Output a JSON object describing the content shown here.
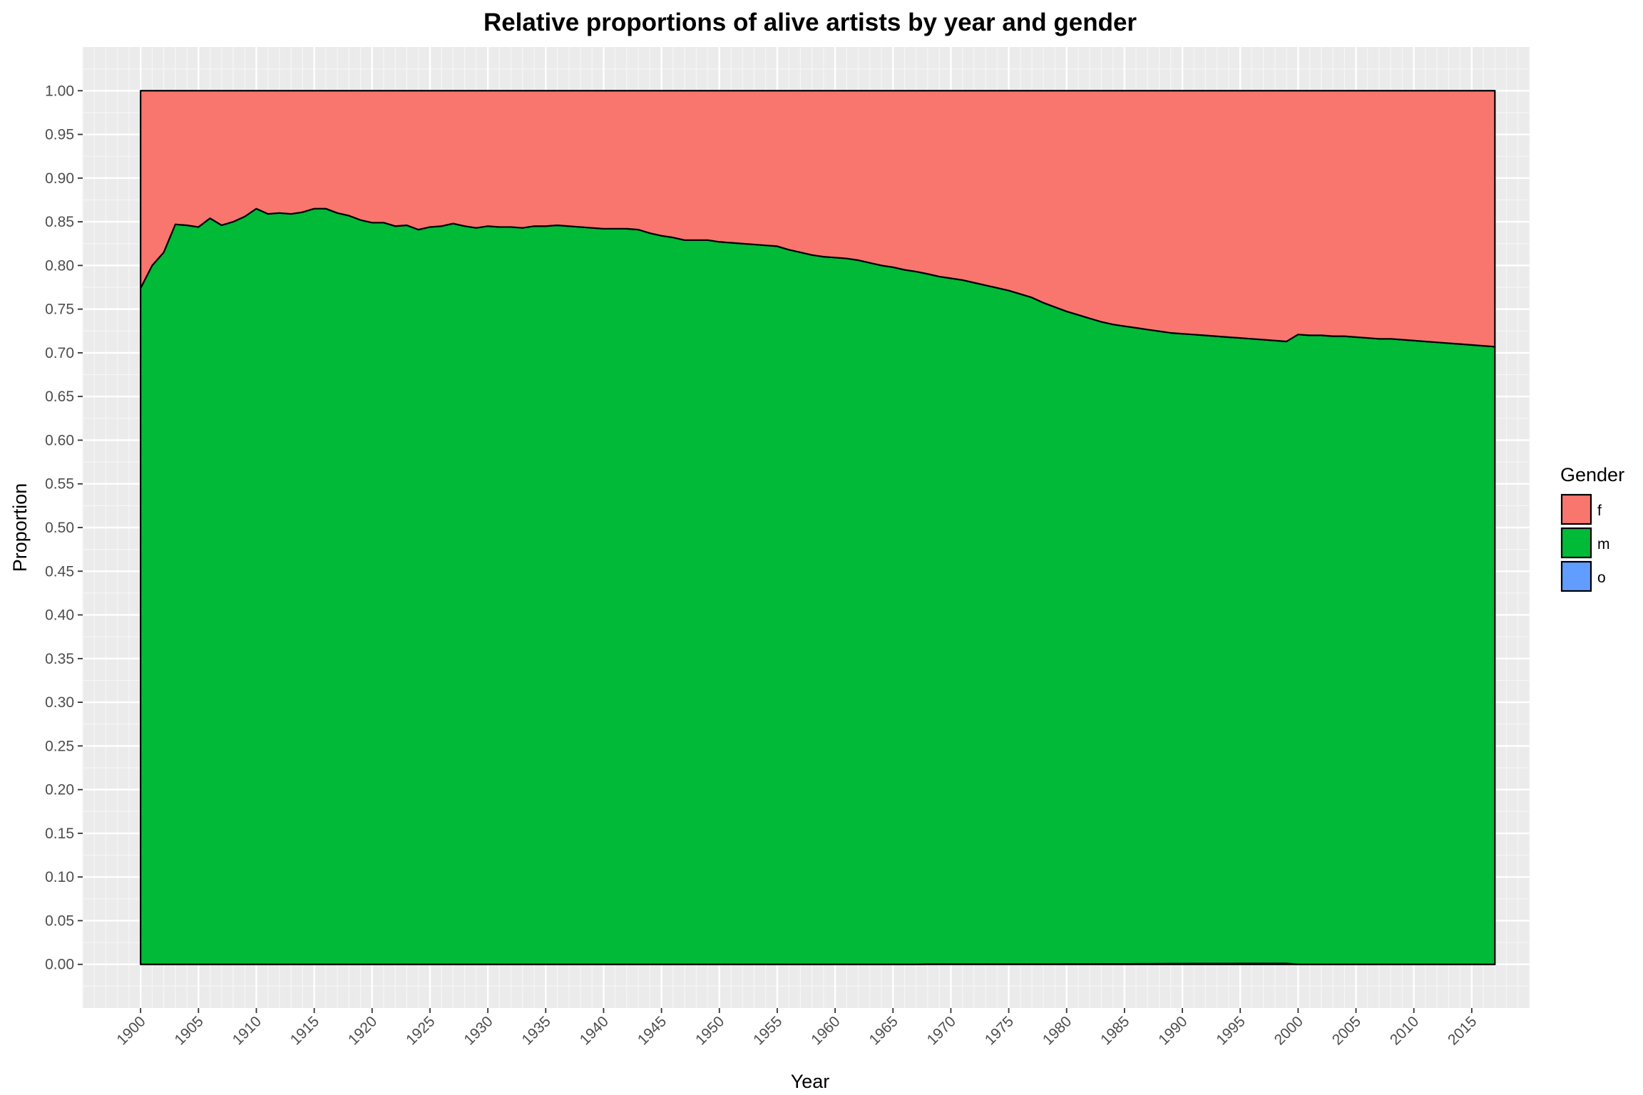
{
  "chart_data": {
    "type": "area",
    "stacked": "fill",
    "title": "Relative proportions of alive artists by year and gender",
    "xlabel": "Year",
    "ylabel": "Proportion",
    "xlim": [
      1895,
      2020
    ],
    "ylim": [
      -0.05,
      1.05
    ],
    "x_ticks": [
      1900,
      1905,
      1910,
      1915,
      1920,
      1925,
      1930,
      1935,
      1940,
      1945,
      1950,
      1955,
      1960,
      1965,
      1970,
      1975,
      1980,
      1985,
      1990,
      1995,
      2000,
      2005,
      2010,
      2015
    ],
    "y_ticks": [
      "0.00",
      "0.05",
      "0.10",
      "0.15",
      "0.20",
      "0.25",
      "0.30",
      "0.35",
      "0.40",
      "0.45",
      "0.50",
      "0.55",
      "0.60",
      "0.65",
      "0.70",
      "0.75",
      "0.80",
      "0.85",
      "0.90",
      "0.95",
      "1.00"
    ],
    "grid": true,
    "legend": {
      "title": "Gender",
      "position": "right",
      "entries": [
        "f",
        "m",
        "o"
      ]
    },
    "colors": {
      "f": "#F8766D",
      "m": "#00BA38",
      "o": "#619CFF"
    },
    "x": [
      1900,
      1901,
      1902,
      1903,
      1904,
      1905,
      1906,
      1907,
      1908,
      1909,
      1910,
      1911,
      1912,
      1913,
      1914,
      1915,
      1916,
      1917,
      1918,
      1919,
      1920,
      1921,
      1922,
      1923,
      1924,
      1925,
      1926,
      1927,
      1928,
      1929,
      1930,
      1931,
      1932,
      1933,
      1934,
      1935,
      1936,
      1937,
      1938,
      1939,
      1940,
      1941,
      1942,
      1943,
      1944,
      1945,
      1946,
      1947,
      1948,
      1949,
      1950,
      1951,
      1952,
      1953,
      1954,
      1955,
      1956,
      1957,
      1958,
      1959,
      1960,
      1961,
      1962,
      1963,
      1964,
      1965,
      1966,
      1967,
      1968,
      1969,
      1970,
      1971,
      1972,
      1973,
      1974,
      1975,
      1976,
      1977,
      1978,
      1979,
      1980,
      1981,
      1982,
      1983,
      1984,
      1985,
      1986,
      1987,
      1988,
      1989,
      1990,
      1991,
      1992,
      1993,
      1994,
      1995,
      1996,
      1997,
      1998,
      1999,
      2000,
      2001,
      2002,
      2003,
      2004,
      2005,
      2006,
      2007,
      2008,
      2009,
      2010,
      2011,
      2012,
      2013,
      2014,
      2015,
      2016,
      2017
    ],
    "series": [
      {
        "name": "o",
        "values": [
          0,
          0,
          0,
          0,
          0,
          0,
          0,
          0,
          0,
          0,
          0,
          0,
          0,
          0,
          0,
          0,
          0,
          0,
          0,
          0,
          0,
          0,
          0,
          0,
          0,
          0,
          0,
          0,
          0,
          0,
          0,
          0,
          0,
          0,
          0,
          0,
          0,
          0,
          0,
          0,
          0,
          0,
          0,
          0,
          0,
          0,
          0,
          0,
          0,
          0,
          0,
          0,
          0,
          0,
          0,
          0,
          0,
          0,
          0,
          0,
          0,
          0,
          0,
          0,
          0,
          0,
          0,
          0,
          0.0003,
          0.0003,
          0.0003,
          0.0003,
          0.0003,
          0.0003,
          0.0003,
          0.0003,
          0.0003,
          0.0003,
          0.0003,
          0.0003,
          0.0004,
          0.0004,
          0.0004,
          0.0005,
          0.0005,
          0.0005,
          0.0006,
          0.0006,
          0.0007,
          0.0008,
          0.0008,
          0.0009,
          0.0009,
          0.0009,
          0.0009,
          0.001,
          0.001,
          0.001,
          0.001,
          0.001,
          0,
          0,
          0,
          0,
          0,
          0,
          0,
          0,
          0,
          0,
          0,
          0,
          0,
          0,
          0,
          0,
          0,
          0
        ]
      },
      {
        "name": "m",
        "values": [
          0.774,
          0.8,
          0.815,
          0.847,
          0.846,
          0.844,
          0.854,
          0.846,
          0.85,
          0.856,
          0.865,
          0.859,
          0.86,
          0.859,
          0.861,
          0.865,
          0.865,
          0.86,
          0.857,
          0.852,
          0.849,
          0.849,
          0.845,
          0.846,
          0.841,
          0.844,
          0.845,
          0.848,
          0.845,
          0.843,
          0.845,
          0.844,
          0.844,
          0.843,
          0.845,
          0.845,
          0.846,
          0.845,
          0.844,
          0.843,
          0.842,
          0.842,
          0.842,
          0.841,
          0.837,
          0.834,
          0.832,
          0.829,
          0.829,
          0.829,
          0.827,
          0.826,
          0.825,
          0.824,
          0.823,
          0.822,
          0.818,
          0.815,
          0.812,
          0.81,
          0.809,
          0.808,
          0.806,
          0.803,
          0.8,
          0.798,
          0.795,
          0.793,
          0.79,
          0.787,
          0.785,
          0.783,
          0.78,
          0.777,
          0.774,
          0.771,
          0.767,
          0.763,
          0.757,
          0.752,
          0.747,
          0.743,
          0.739,
          0.735,
          0.732,
          0.73,
          0.728,
          0.726,
          0.724,
          0.722,
          0.721,
          0.72,
          0.719,
          0.718,
          0.717,
          0.716,
          0.715,
          0.714,
          0.713,
          0.712,
          0.721,
          0.72,
          0.72,
          0.719,
          0.719,
          0.718,
          0.717,
          0.716,
          0.716,
          0.715,
          0.714,
          0.713,
          0.712,
          0.711,
          0.71,
          0.709,
          0.708,
          0.707
        ]
      },
      {
        "name": "f",
        "values": [
          0.226,
          0.2,
          0.185,
          0.153,
          0.154,
          0.156,
          0.146,
          0.154,
          0.15,
          0.144,
          0.135,
          0.141,
          0.14,
          0.141,
          0.139,
          0.135,
          0.135,
          0.14,
          0.143,
          0.148,
          0.151,
          0.151,
          0.155,
          0.154,
          0.159,
          0.156,
          0.155,
          0.152,
          0.155,
          0.157,
          0.155,
          0.156,
          0.156,
          0.157,
          0.155,
          0.155,
          0.154,
          0.155,
          0.156,
          0.157,
          0.158,
          0.158,
          0.158,
          0.159,
          0.163,
          0.166,
          0.168,
          0.171,
          0.171,
          0.171,
          0.173,
          0.174,
          0.175,
          0.176,
          0.177,
          0.178,
          0.182,
          0.185,
          0.188,
          0.19,
          0.191,
          0.192,
          0.194,
          0.197,
          0.2,
          0.202,
          0.205,
          0.207,
          0.2097,
          0.2127,
          0.2147,
          0.2167,
          0.2197,
          0.2227,
          0.2257,
          0.2287,
          0.2327,
          0.2367,
          0.2427,
          0.2477,
          0.2526,
          0.2566,
          0.2606,
          0.2645,
          0.2675,
          0.2695,
          0.2714,
          0.2734,
          0.2753,
          0.2772,
          0.2782,
          0.2791,
          0.2801,
          0.2811,
          0.2821,
          0.283,
          0.284,
          0.285,
          0.286,
          0.287,
          0.279,
          0.28,
          0.28,
          0.281,
          0.281,
          0.282,
          0.283,
          0.284,
          0.284,
          0.285,
          0.286,
          0.287,
          0.288,
          0.289,
          0.29,
          0.291,
          0.292,
          0.293
        ]
      }
    ]
  }
}
